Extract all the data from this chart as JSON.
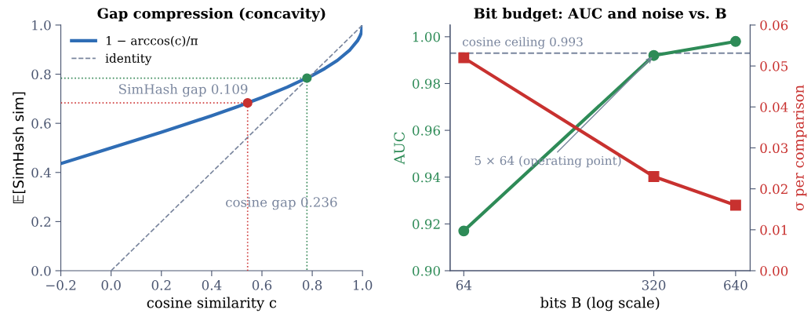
{
  "chart_data": [
    {
      "type": "line",
      "title": "Gap compression (concavity)",
      "xlabel": "cosine similarity c",
      "ylabel": "𝔼[SimHash sim]",
      "xlim": [
        -0.2,
        1.0
      ],
      "ylim": [
        0.0,
        1.0
      ],
      "xticks": [
        {
          "value": -0.2,
          "label": "−0.2"
        },
        {
          "value": 0.0,
          "label": "0.0"
        },
        {
          "value": 0.2,
          "label": "0.2"
        },
        {
          "value": 0.4,
          "label": "0.4"
        },
        {
          "value": 0.6,
          "label": "0.6"
        },
        {
          "value": 0.8,
          "label": "0.8"
        },
        {
          "value": 1.0,
          "label": "1.0"
        }
      ],
      "yticks": [
        {
          "value": 0.0,
          "label": "0.0"
        },
        {
          "value": 0.2,
          "label": "0.2"
        },
        {
          "value": 0.4,
          "label": "0.4"
        },
        {
          "value": 0.6,
          "label": "0.6"
        },
        {
          "value": 0.8,
          "label": "0.8"
        },
        {
          "value": 1.0,
          "label": "1.0"
        }
      ],
      "legend": "top left",
      "grid": false,
      "series": [
        {
          "name": "1 − arccos(c)/π",
          "color": "#2f6db5",
          "line_style": "solid",
          "marker": "none",
          "x": [
            -0.2,
            -0.1,
            0.0,
            0.1,
            0.2,
            0.3,
            0.4,
            0.5,
            0.6,
            0.7,
            0.8,
            0.85,
            0.9,
            0.95,
            0.98,
            0.99,
            0.995,
            1.0
          ],
          "values": [
            0.436,
            0.468,
            0.5,
            0.532,
            0.564,
            0.597,
            0.631,
            0.667,
            0.705,
            0.747,
            0.795,
            0.823,
            0.856,
            0.899,
            0.936,
            0.955,
            0.968,
            1.0
          ]
        },
        {
          "name": "identity",
          "color": "#7a869e",
          "line_style": "dashed",
          "marker": "none",
          "x": [
            0.0,
            1.0
          ],
          "values": [
            0.0,
            1.0
          ]
        },
        {
          "color": "#d04040",
          "line_style": "dotted",
          "marker": "none",
          "x": [
            -0.2,
            0.543,
            0.543
          ],
          "values": [
            0.683,
            0.683,
            0.0
          ]
        },
        {
          "color": "#3a8a5a",
          "line_style": "dotted",
          "marker": "none",
          "x": [
            -0.2,
            0.779,
            0.779
          ],
          "values": [
            0.784,
            0.784,
            0.0
          ]
        },
        {
          "type": "scatter",
          "color": "#c8312f",
          "marker": "circle",
          "x": [
            0.543
          ],
          "values": [
            0.683
          ]
        },
        {
          "type": "scatter",
          "color": "#2e8b57",
          "marker": "circle",
          "x": [
            0.779
          ],
          "values": [
            0.784
          ]
        }
      ],
      "annotations": [
        "SimHash gap 0.109",
        "cosine gap 0.236"
      ]
    },
    {
      "type": "line",
      "title": "Bit budget: AUC and noise vs. B",
      "xlabel": "bits B (log scale)",
      "ylabel": "AUC",
      "y2label": "σ per comparison",
      "log": "x",
      "xlim": [
        57,
        724
      ],
      "xticks": [
        64,
        320,
        640
      ],
      "ylim": [
        0.9,
        1.005
      ],
      "yticks": [
        {
          "value": 0.9,
          "label": "0.90"
        },
        {
          "value": 0.92,
          "label": "0.92"
        },
        {
          "value": 0.94,
          "label": "0.94"
        },
        {
          "value": 0.96,
          "label": "0.96"
        },
        {
          "value": 0.98,
          "label": "0.98"
        },
        {
          "value": 1.0,
          "label": "1.00"
        }
      ],
      "y2lim": [
        0.0,
        0.06
      ],
      "y2ticks": [
        {
          "value": 0.0,
          "label": "0.00"
        },
        {
          "value": 0.01,
          "label": "0.01"
        },
        {
          "value": 0.02,
          "label": "0.02"
        },
        {
          "value": 0.03,
          "label": "0.03"
        },
        {
          "value": 0.04,
          "label": "0.04"
        },
        {
          "value": 0.05,
          "label": "0.05"
        },
        {
          "value": 0.06,
          "label": "0.06"
        }
      ],
      "grid": false,
      "legend": false,
      "series": [
        {
          "color": "#2e8b57",
          "marker": "circle",
          "line_style": "solid",
          "x": [
            64,
            320,
            640
          ],
          "values": [
            0.917,
            0.992,
            0.998
          ]
        },
        {
          "color": "#c8312f",
          "marker": "square",
          "line_style": "solid",
          "axis": "y2",
          "x": [
            64,
            320,
            640
          ],
          "values": [
            0.052,
            0.023,
            0.016
          ]
        }
      ],
      "ref_lines": [
        {
          "axis": "y",
          "value": 0.993,
          "label": "cosine ceiling 0.993",
          "color": "#7a869e",
          "line_style": "dashed"
        }
      ],
      "annotations": [
        {
          "text": "5 × 64 (operating point)",
          "x": 320,
          "y": 0.992
        }
      ]
    }
  ]
}
